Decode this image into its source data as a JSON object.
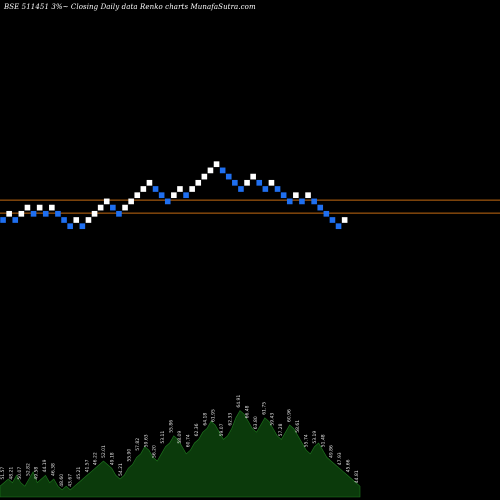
{
  "header": {
    "title": "BSE 511451 3%~  Closing Daily data  Renko  charts MunafaSutra.com"
  },
  "chart_data": {
    "type": "renko",
    "bricks": [
      {
        "dir": "down",
        "level": 0
      },
      {
        "dir": "up",
        "level": 1
      },
      {
        "dir": "down",
        "level": 0
      },
      {
        "dir": "up",
        "level": 1
      },
      {
        "dir": "up",
        "level": 2
      },
      {
        "dir": "down",
        "level": 1
      },
      {
        "dir": "up",
        "level": 2
      },
      {
        "dir": "down",
        "level": 1
      },
      {
        "dir": "up",
        "level": 2
      },
      {
        "dir": "down",
        "level": 1
      },
      {
        "dir": "down",
        "level": 0
      },
      {
        "dir": "down",
        "level": -1
      },
      {
        "dir": "up",
        "level": 0
      },
      {
        "dir": "down",
        "level": -1
      },
      {
        "dir": "up",
        "level": 0
      },
      {
        "dir": "up",
        "level": 1
      },
      {
        "dir": "up",
        "level": 2
      },
      {
        "dir": "up",
        "level": 3
      },
      {
        "dir": "down",
        "level": 2
      },
      {
        "dir": "down",
        "level": 1
      },
      {
        "dir": "up",
        "level": 2
      },
      {
        "dir": "up",
        "level": 3
      },
      {
        "dir": "up",
        "level": 4
      },
      {
        "dir": "up",
        "level": 5
      },
      {
        "dir": "up",
        "level": 6
      },
      {
        "dir": "down",
        "level": 5
      },
      {
        "dir": "down",
        "level": 4
      },
      {
        "dir": "down",
        "level": 3
      },
      {
        "dir": "up",
        "level": 4
      },
      {
        "dir": "up",
        "level": 5
      },
      {
        "dir": "down",
        "level": 4
      },
      {
        "dir": "up",
        "level": 5
      },
      {
        "dir": "up",
        "level": 6
      },
      {
        "dir": "up",
        "level": 7
      },
      {
        "dir": "up",
        "level": 8
      },
      {
        "dir": "up",
        "level": 9
      },
      {
        "dir": "down",
        "level": 8
      },
      {
        "dir": "down",
        "level": 7
      },
      {
        "dir": "down",
        "level": 6
      },
      {
        "dir": "down",
        "level": 5
      },
      {
        "dir": "up",
        "level": 6
      },
      {
        "dir": "up",
        "level": 7
      },
      {
        "dir": "down",
        "level": 6
      },
      {
        "dir": "down",
        "level": 5
      },
      {
        "dir": "up",
        "level": 6
      },
      {
        "dir": "down",
        "level": 5
      },
      {
        "dir": "down",
        "level": 4
      },
      {
        "dir": "down",
        "level": 3
      },
      {
        "dir": "up",
        "level": 4
      },
      {
        "dir": "down",
        "level": 3
      },
      {
        "dir": "up",
        "level": 4
      },
      {
        "dir": "down",
        "level": 3
      },
      {
        "dir": "down",
        "level": 2
      },
      {
        "dir": "down",
        "level": 1
      },
      {
        "dir": "down",
        "level": 0
      },
      {
        "dir": "down",
        "level": -1
      },
      {
        "dir": "up",
        "level": 0
      }
    ],
    "reference_lines": [
      {
        "level": 3.2
      },
      {
        "level": 1.1
      }
    ],
    "volume_series": [
      3,
      4,
      5,
      4,
      6,
      4,
      3,
      5,
      7,
      4,
      5,
      6,
      4,
      5,
      3,
      2,
      3,
      2,
      3,
      4,
      5,
      6,
      7,
      8,
      9,
      10,
      9,
      8,
      6,
      5,
      6,
      8,
      9,
      11,
      12,
      14,
      13,
      11,
      10,
      12,
      14,
      15,
      17,
      16,
      14,
      12,
      13,
      15,
      16,
      18,
      19,
      21,
      20,
      18,
      16,
      17,
      19,
      22,
      24,
      23,
      21,
      19,
      18,
      20,
      22,
      21,
      19,
      17,
      16,
      18,
      20,
      19,
      17,
      15,
      13,
      12,
      14,
      15,
      13,
      11,
      10,
      9,
      8,
      7,
      6,
      5,
      4,
      3
    ],
    "volume_labels": [
      "51.57",
      "48.21",
      "50.07",
      "52.82",
      "49.58",
      "44.19",
      "46.38",
      "48.60",
      "43.67",
      "45.21",
      "41.57",
      "46.22",
      "52.01",
      "49.18",
      "54.21",
      "55.90",
      "57.82",
      "59.63",
      "56.20",
      "53.11",
      "55.86",
      "58.09",
      "60.74",
      "62.36",
      "64.18",
      "61.95",
      "59.07",
      "62.33",
      "64.91",
      "66.48",
      "63.80",
      "61.75",
      "59.43",
      "57.28",
      "60.96",
      "58.61",
      "55.74",
      "53.19",
      "51.48",
      "49.86",
      "47.93",
      "45.66",
      "44.81"
    ],
    "colors": {
      "up": "#ffffff",
      "down": "#1f6ff0",
      "reference_line": "#c46a12",
      "volume_fill": "#0b3a0b",
      "volume_stroke": "#1f7a1f",
      "label": "#e6e6e6",
      "background": "#000000"
    },
    "grid": false
  }
}
